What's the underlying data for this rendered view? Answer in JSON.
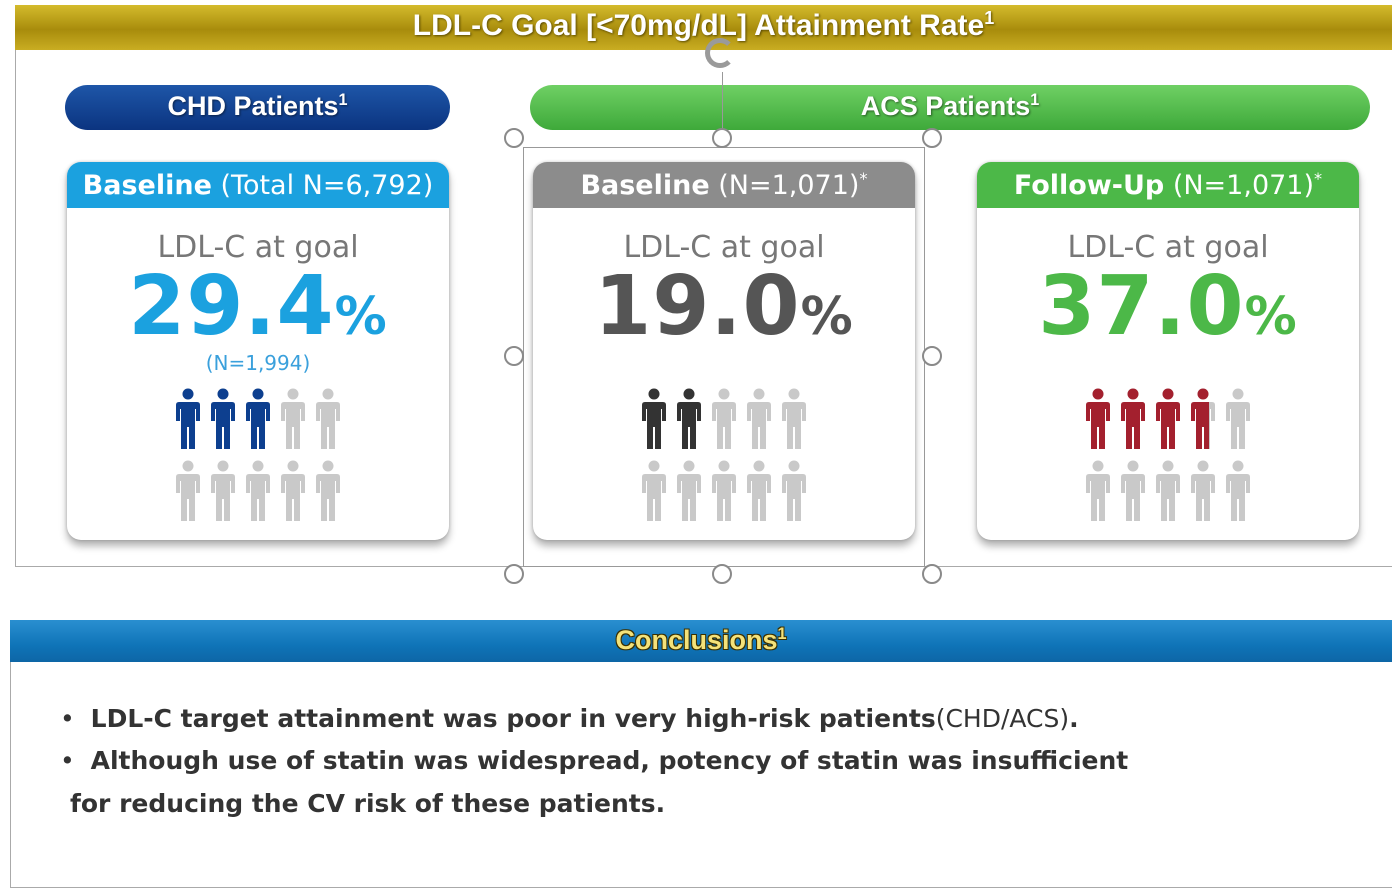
{
  "header": {
    "title": "LDL-C Goal [<70mg/dL] Attainment Rate",
    "ref": "1"
  },
  "groups": [
    {
      "label": "CHD Patients",
      "ref": "1"
    },
    {
      "label": "ACS Patients",
      "ref": "1"
    }
  ],
  "cards": [
    {
      "label": "Baseline",
      "n": "(Total N=6,792)",
      "metric": "LDL-C at goal",
      "value": "29.4",
      "unit": "%",
      "count": "(N=1,994)"
    },
    {
      "label": "Baseline",
      "n": "(N=1,071)",
      "note": "*",
      "metric": "LDL-C at goal",
      "value": "19.0",
      "unit": "%"
    },
    {
      "label": "Follow-Up",
      "n": "(N=1,071)",
      "note": "*",
      "metric": "LDL-C at goal",
      "value": "37.0",
      "unit": "%"
    }
  ],
  "conclusions": {
    "title": "Conclusions",
    "ref": "1",
    "bullets": [
      [
        "LDL-C target attainment was poor in very high-risk patients",
        "(CHD/ACS)",
        "."
      ],
      [
        "Although use of statin was widespread, potency of statin was insufficient",
        "for reducing the CV risk of these patients."
      ]
    ]
  }
}
